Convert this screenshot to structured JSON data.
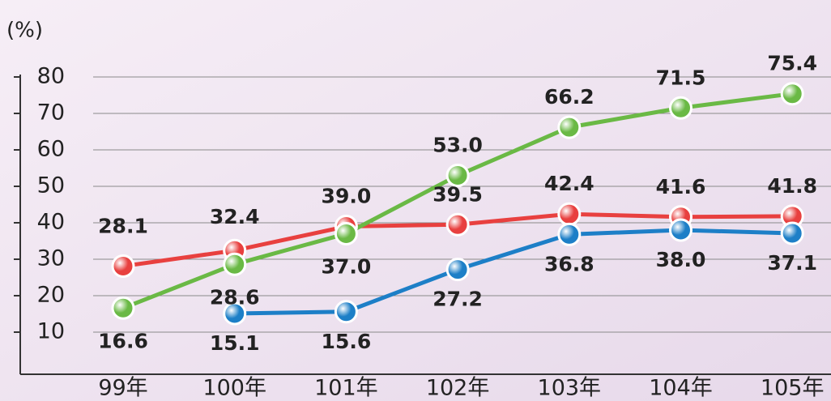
{
  "chart_data": {
    "type": "line",
    "y_label": "(%)",
    "categories": [
      "99年",
      "100年",
      "101年",
      "102年",
      "103年",
      "104年",
      "105年"
    ],
    "series": [
      {
        "color": "#e8403f",
        "values": [
          28.1,
          32.4,
          39.0,
          39.5,
          42.4,
          41.6,
          41.8
        ]
      },
      {
        "color": "#1d7fc7",
        "values": [
          null,
          15.1,
          15.6,
          27.2,
          36.8,
          38.0,
          37.1
        ]
      },
      {
        "color": "#6ab945",
        "values": [
          16.6,
          28.6,
          37.0,
          53.0,
          66.2,
          71.5,
          75.4
        ]
      }
    ],
    "ylim": [
      0,
      80
    ],
    "yticks": [
      10,
      20,
      30,
      40,
      50,
      60,
      70,
      80
    ],
    "grid": true
  }
}
